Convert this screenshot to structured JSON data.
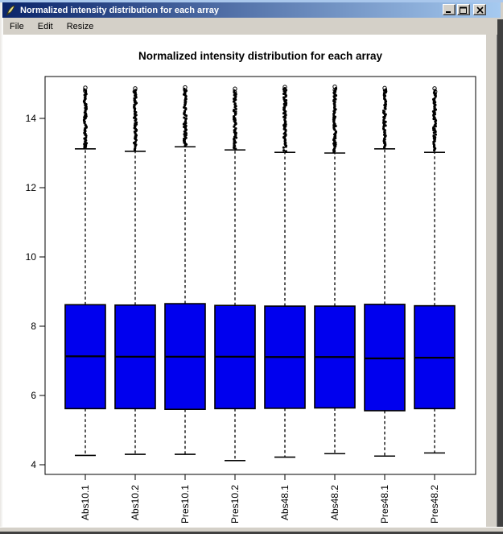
{
  "window": {
    "title": "Normalized intensity distribution for each array",
    "icon": "quill-feather-icon",
    "controls": [
      {
        "name": "minimize"
      },
      {
        "name": "maximize"
      },
      {
        "name": "close"
      }
    ]
  },
  "menu": {
    "items": [
      "File",
      "Edit",
      "Resize"
    ]
  },
  "chart_data": {
    "type": "boxplot",
    "title": "Normalized intensity distribution for each array",
    "xlabel": "",
    "ylabel": "",
    "grid": false,
    "x_tick_rotation": 90,
    "y_ticks": [
      4,
      6,
      8,
      10,
      12,
      14
    ],
    "ylim": [
      3.7,
      15.2
    ],
    "box_fill": "#0000ee",
    "categories": [
      "Abs10.1",
      "Abs10.2",
      "Pres10.1",
      "Pres10.2",
      "Abs48.1",
      "Abs48.2",
      "Pres48.1",
      "Pres48.2"
    ],
    "series": [
      {
        "name": "Abs10.1",
        "whisker_low": 4.27,
        "q1": 5.62,
        "median": 7.13,
        "q3": 8.62,
        "whisker_high": 13.12,
        "outliers_range": [
          13.15,
          14.85
        ]
      },
      {
        "name": "Abs10.2",
        "whisker_low": 4.3,
        "q1": 5.62,
        "median": 7.12,
        "q3": 8.61,
        "whisker_high": 13.05,
        "outliers_range": [
          13.08,
          14.83
        ]
      },
      {
        "name": "Pres10.1",
        "whisker_low": 4.3,
        "q1": 5.6,
        "median": 7.12,
        "q3": 8.65,
        "whisker_high": 13.18,
        "outliers_range": [
          13.22,
          14.86
        ]
      },
      {
        "name": "Pres10.2",
        "whisker_low": 4.12,
        "q1": 5.62,
        "median": 7.12,
        "q3": 8.6,
        "whisker_high": 13.09,
        "outliers_range": [
          13.12,
          14.82
        ]
      },
      {
        "name": "Abs48.1",
        "whisker_low": 4.22,
        "q1": 5.63,
        "median": 7.11,
        "q3": 8.58,
        "whisker_high": 13.02,
        "outliers_range": [
          13.05,
          14.87
        ]
      },
      {
        "name": "Abs48.2",
        "whisker_low": 4.32,
        "q1": 5.64,
        "median": 7.11,
        "q3": 8.58,
        "whisker_high": 13.0,
        "outliers_range": [
          13.03,
          14.88
        ]
      },
      {
        "name": "Pres48.1",
        "whisker_low": 4.25,
        "q1": 5.56,
        "median": 7.07,
        "q3": 8.63,
        "whisker_high": 13.12,
        "outliers_range": [
          13.15,
          14.84
        ]
      },
      {
        "name": "Pres48.2",
        "whisker_low": 4.34,
        "q1": 5.62,
        "median": 7.09,
        "q3": 8.59,
        "whisker_high": 13.02,
        "outliers_range": [
          13.05,
          14.83
        ]
      }
    ]
  },
  "colors": {
    "titlebar_left": "#0a246a",
    "titlebar_right": "#a6caf0",
    "titlebar_text": "#ffffff",
    "chrome": "#d4d0c8",
    "canvas": "#ffffff",
    "plot_foreground": "#000000",
    "box_fill": "#0000ee",
    "window_edge_top": "#a9c7ec",
    "window_edge_dark": "#404040"
  }
}
